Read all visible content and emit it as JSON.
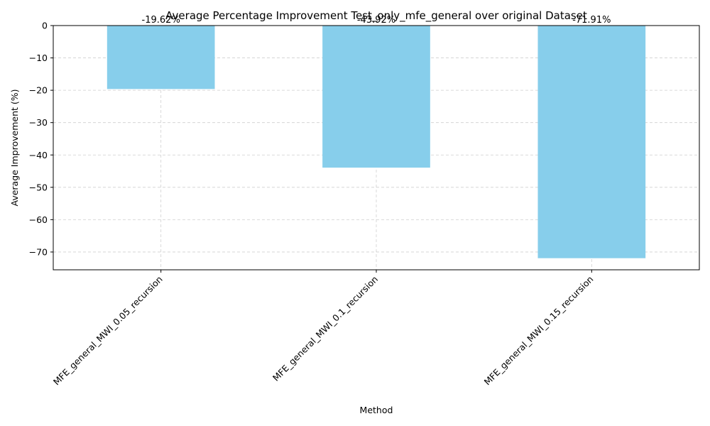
{
  "chart_data": {
    "type": "bar",
    "title": "Average Percentage Improvement Test_only_mfe_general over original Dataset",
    "xlabel": "Method",
    "ylabel": "Average Improvement (%)",
    "categories": [
      "MFE_general_MWI_0.05_recursion",
      "MFE_general_MWI_0.1_recursion",
      "MFE_general_MWI_0.15_recursion"
    ],
    "values": [
      -19.62,
      -43.92,
      -71.91
    ],
    "value_labels": [
      "-19.62%",
      "-43.92%",
      "-71.91%"
    ],
    "yticks": [
      0,
      -10,
      -20,
      -30,
      -40,
      -50,
      -60,
      -70
    ],
    "ytick_labels": [
      "0",
      "−10",
      "−20",
      "−30",
      "−40",
      "−50",
      "−60",
      "−70"
    ],
    "ylim": [
      -75.5,
      0
    ],
    "grid": true,
    "bar_color": "#87ceeb"
  }
}
